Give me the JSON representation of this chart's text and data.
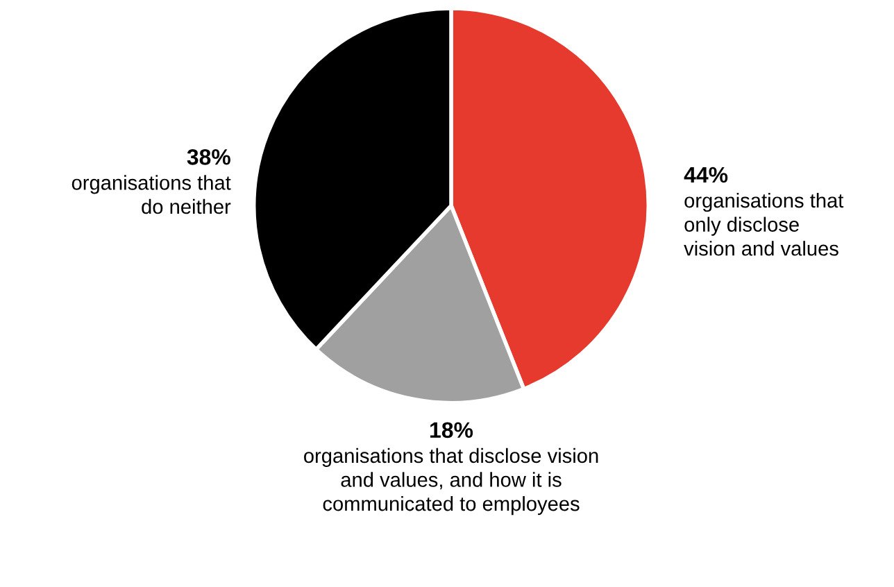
{
  "chart_data": {
    "type": "pie",
    "categories": [
      "organisations that\nonly disclose\nvision and values",
      "organisations that disclose vision\nand values, and how it is\ncommunicated to employees",
      "organisations that\ndo neither"
    ],
    "values": [
      44,
      18,
      38
    ],
    "value_labels": [
      "44%",
      "18%",
      "38%"
    ],
    "colors": [
      "#e63a2e",
      "#a0a0a0",
      "#000000"
    ],
    "legend": false
  }
}
